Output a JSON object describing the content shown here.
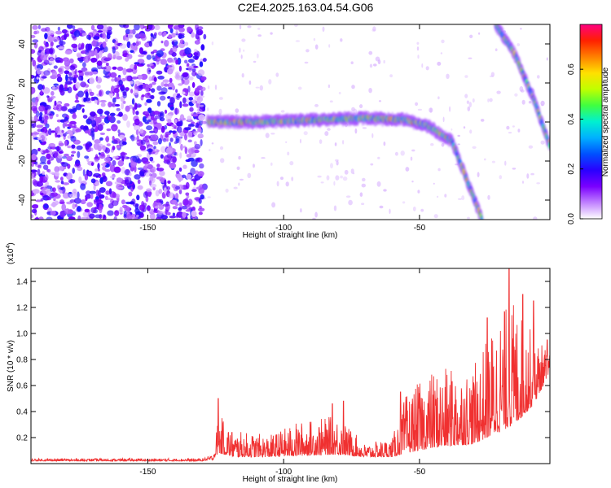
{
  "title": "C2E4.2025.163.04.54.G06",
  "chart_data": [
    {
      "type": "heatmap",
      "xlabel": "Height of straight line (km)",
      "ylabel": "Frequency (Hz)",
      "xlim": [
        -193,
        -2
      ],
      "ylim": [
        -50,
        50
      ],
      "x_ticks": [
        -150,
        -100,
        -50
      ],
      "y_ticks": [
        -40,
        -20,
        0,
        20,
        40
      ],
      "colorbar": {
        "label": "Normalized spectral amplitude",
        "range": [
          0,
          0.78
        ],
        "ticks": [
          0,
          0.2,
          0.4,
          0.6
        ],
        "colors": [
          "#ffffff",
          "#c080ff",
          "#7a00ff",
          "#2a00ff",
          "#0050ff",
          "#00b0ff",
          "#00f0d0",
          "#40ff40",
          "#c0ff00",
          "#ffe000",
          "#ff8000",
          "#ff2000",
          "#ff0080"
        ]
      },
      "features": [
        {
          "name": "noise",
          "x_range": [
            -193,
            -129
          ],
          "freq_range": [
            -50,
            50
          ]
        },
        {
          "name": "band",
          "points": [
            [
              -128,
              0
            ],
            [
              -110,
              0
            ],
            [
              -90,
              1
            ],
            [
              -70,
              2
            ],
            [
              -55,
              1
            ],
            [
              -47,
              -2
            ],
            [
              -38,
              -10
            ],
            [
              -33,
              -28
            ],
            [
              -27,
              -50
            ]
          ]
        },
        {
          "name": "band",
          "points": [
            [
              -22,
              50
            ],
            [
              -15,
              35
            ],
            [
              -8,
              12
            ],
            [
              -2,
              -12
            ]
          ]
        }
      ]
    },
    {
      "type": "line",
      "xlabel": "Height of straight line (km)",
      "ylabel": "SNR (10 * v/v)",
      "y_multiplier": "(x10",
      "y_multiplier_exp": "4",
      "y_multiplier_close": ")",
      "xlim": [
        -193,
        -2
      ],
      "ylim": [
        0,
        1.5
      ],
      "x_ticks": [
        -150,
        -100,
        -50
      ],
      "y_ticks": [
        0.2,
        0.4,
        0.6,
        0.8,
        1.0,
        1.2,
        1.4
      ],
      "color": "#f03030",
      "envelope": [
        {
          "x": -193,
          "base": 0.02,
          "amp": 0.02
        },
        {
          "x": -130,
          "base": 0.02,
          "amp": 0.02
        },
        {
          "x": -126,
          "base": 0.03,
          "amp": 0.04
        },
        {
          "x": -124,
          "base": 0.08,
          "amp": 0.3
        },
        {
          "x": -118,
          "base": 0.05,
          "amp": 0.2
        },
        {
          "x": -105,
          "base": 0.05,
          "amp": 0.17
        },
        {
          "x": -95,
          "base": 0.06,
          "amp": 0.26
        },
        {
          "x": -80,
          "base": 0.07,
          "amp": 0.3
        },
        {
          "x": -70,
          "base": 0.05,
          "amp": 0.1
        },
        {
          "x": -60,
          "base": 0.05,
          "amp": 0.15
        },
        {
          "x": -55,
          "base": 0.08,
          "amp": 0.45
        },
        {
          "x": -45,
          "base": 0.12,
          "amp": 0.6
        },
        {
          "x": -30,
          "base": 0.15,
          "amp": 0.6
        },
        {
          "x": -20,
          "base": 0.25,
          "amp": 0.95
        },
        {
          "x": -15,
          "base": 0.3,
          "amp": 0.95
        },
        {
          "x": -8,
          "base": 0.45,
          "amp": 0.55
        },
        {
          "x": -2,
          "base": 0.7,
          "amp": 0.15
        }
      ],
      "peaks": [
        [
          -124,
          0.5
        ],
        [
          -82,
          0.46
        ],
        [
          -78,
          0.48
        ],
        [
          -57,
          0.55
        ],
        [
          -38,
          0.63
        ],
        [
          -25,
          1.12
        ],
        [
          -17,
          1.5
        ],
        [
          -12,
          1.3
        ],
        [
          -8,
          1.25
        ],
        [
          -3,
          0.95
        ]
      ]
    }
  ]
}
